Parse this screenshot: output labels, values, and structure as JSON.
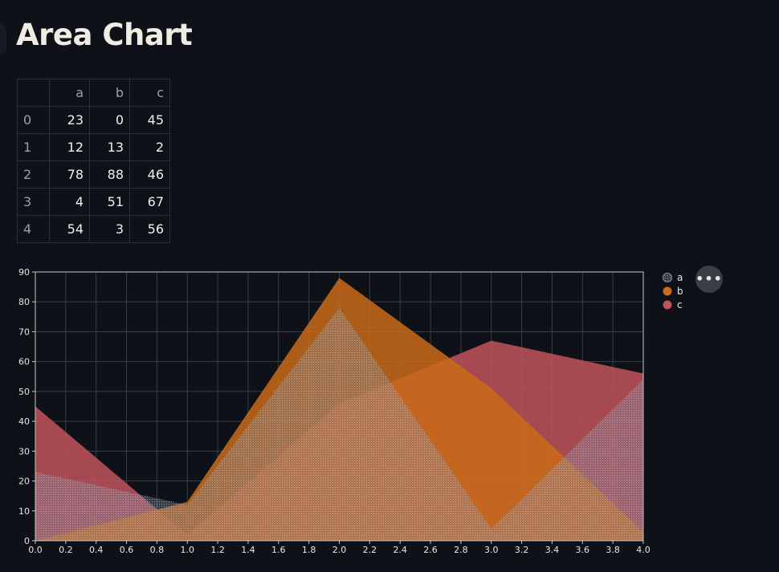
{
  "page": {
    "title": "Area Chart"
  },
  "table": {
    "columns": [
      "a",
      "b",
      "c"
    ],
    "index": [
      "0",
      "1",
      "2",
      "3",
      "4"
    ],
    "rows": [
      [
        "23",
        "0",
        "45"
      ],
      [
        "12",
        "13",
        "2"
      ],
      [
        "78",
        "88",
        "46"
      ],
      [
        "4",
        "51",
        "67"
      ],
      [
        "54",
        "3",
        "56"
      ]
    ]
  },
  "menu": {
    "label": "•••"
  },
  "chart_data": {
    "type": "area",
    "x": [
      0,
      1,
      2,
      3,
      4
    ],
    "series": [
      {
        "name": "a",
        "values": [
          23,
          12,
          78,
          4,
          54
        ],
        "color": "#8a8fa3"
      },
      {
        "name": "b",
        "values": [
          0,
          13,
          88,
          51,
          3
        ],
        "color": "#c96b17"
      },
      {
        "name": "c",
        "values": [
          45,
          2,
          46,
          67,
          56
        ],
        "color": "#c1535b"
      }
    ],
    "xlim": [
      0,
      4
    ],
    "ylim": [
      0,
      90
    ],
    "x_ticks": [
      "0.0",
      "0.2",
      "0.4",
      "0.6",
      "0.8",
      "1.0",
      "1.2",
      "1.4",
      "1.6",
      "1.8",
      "2.0",
      "2.2",
      "2.4",
      "2.6",
      "2.8",
      "3.0",
      "3.2",
      "3.4",
      "3.6",
      "3.8",
      "4.0"
    ],
    "y_ticks": [
      "0",
      "10",
      "20",
      "30",
      "40",
      "50",
      "60",
      "70",
      "80",
      "90"
    ],
    "grid": true,
    "legend": "right"
  }
}
